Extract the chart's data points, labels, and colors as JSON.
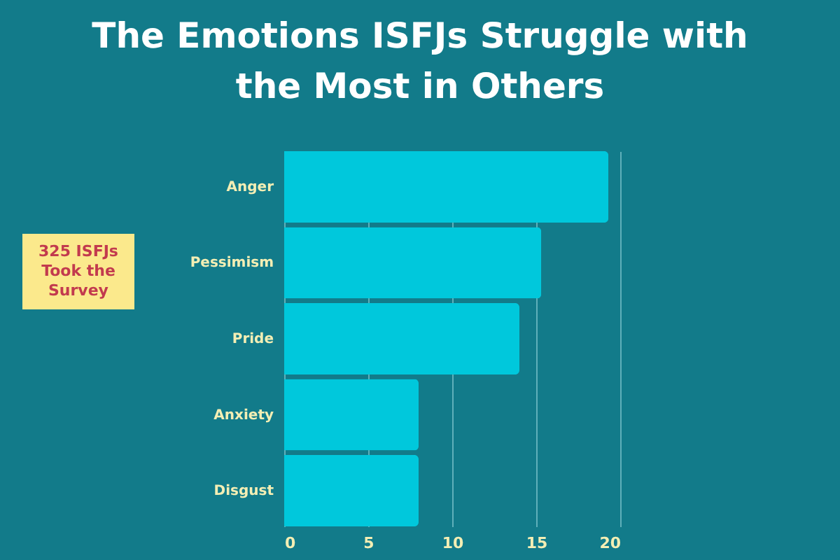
{
  "chart_data": {
    "type": "bar",
    "orientation": "horizontal",
    "title": "The Emotions ISFJs Struggle with the Most in Others",
    "categories": [
      "Anger",
      "Pessimism",
      "Pride",
      "Anxiety",
      "Disgust"
    ],
    "values": [
      19.3,
      15.3,
      14.0,
      8.0,
      8.0
    ],
    "color": "#00c8dc",
    "xlim": [
      0,
      20
    ],
    "xticks": [
      0,
      5,
      10,
      15,
      20
    ],
    "grid": "x",
    "annotations": [
      "325 ISFJs Took the Survey"
    ]
  }
}
